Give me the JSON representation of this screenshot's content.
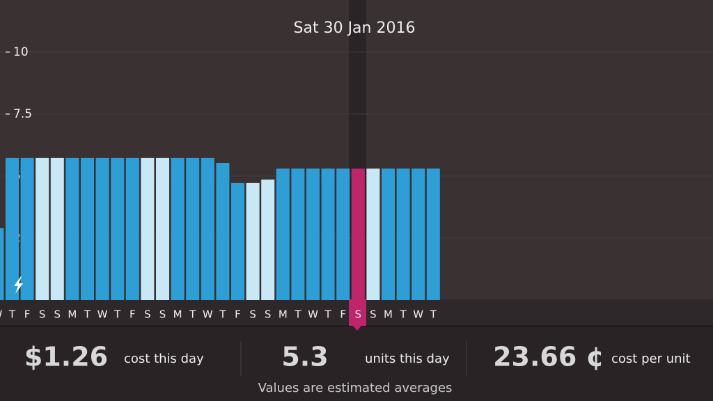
{
  "chart_data": {
    "type": "bar",
    "title": "Sat 30 Jan 2016",
    "categories": [
      "W",
      "T",
      "F",
      "S",
      "S",
      "M",
      "T",
      "W",
      "T",
      "F",
      "S",
      "S",
      "M",
      "T",
      "W",
      "T",
      "F",
      "S",
      "S",
      "M",
      "T",
      "W",
      "T",
      "F",
      "S",
      "S",
      "M",
      "T",
      "W",
      "T"
    ],
    "values": [
      2.9,
      5.73,
      5.73,
      5.73,
      5.73,
      5.73,
      5.73,
      5.73,
      5.73,
      5.73,
      5.73,
      5.73,
      5.73,
      5.73,
      5.73,
      5.53,
      4.72,
      4.72,
      4.86,
      5.3,
      5.3,
      5.3,
      5.3,
      5.3,
      5.3,
      5.3,
      5.3,
      5.3,
      5.3,
      5.3
    ],
    "colors": [
      "#2e9fd6",
      "#2e9fd6",
      "#2e9fd6",
      "#c8e8f5",
      "#c8e8f5",
      "#2e9fd6",
      "#2e9fd6",
      "#2e9fd6",
      "#2e9fd6",
      "#2e9fd6",
      "#c8e8f5",
      "#c8e8f5",
      "#2e9fd6",
      "#2e9fd6",
      "#2e9fd6",
      "#2e9fd6",
      "#2e9fd6",
      "#c8e8f5",
      "#c8e8f5",
      "#2e9fd6",
      "#2e9fd6",
      "#2e9fd6",
      "#2e9fd6",
      "#2e9fd6",
      "#c0246a",
      "#c8e8f5",
      "#2e9fd6",
      "#2e9fd6",
      "#2e9fd6",
      "#2e9fd6"
    ],
    "ylim": [
      0,
      12.1
    ],
    "yticks": [
      2.5,
      {
        "value": 5,
        "label": "5.0"
      },
      7.5,
      10
    ],
    "grid": true
  },
  "summary": {
    "items": [
      {
        "value": "$1.26",
        "label": "cost this day"
      },
      {
        "value": "5.3",
        "label": "units this day"
      },
      {
        "value": "23.66 ¢",
        "label": "cost per unit"
      }
    ],
    "note": "Values are estimated averages"
  }
}
